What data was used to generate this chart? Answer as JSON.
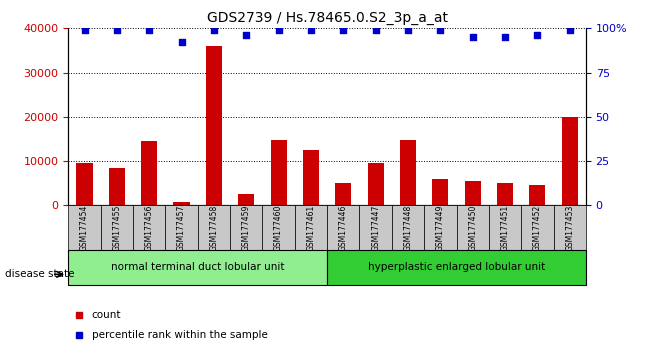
{
  "title": "GDS2739 / Hs.78465.0.S2_3p_a_at",
  "samples": [
    "GSM177454",
    "GSM177455",
    "GSM177456",
    "GSM177457",
    "GSM177458",
    "GSM177459",
    "GSM177460",
    "GSM177461",
    "GSM177446",
    "GSM177447",
    "GSM177448",
    "GSM177449",
    "GSM177450",
    "GSM177451",
    "GSM177452",
    "GSM177453"
  ],
  "counts": [
    9500,
    8500,
    14500,
    800,
    36000,
    2500,
    14800,
    12500,
    5000,
    9500,
    14800,
    6000,
    5500,
    5000,
    4500,
    20000
  ],
  "percentile_ranks": [
    99,
    99,
    99,
    92,
    99,
    96,
    99,
    99,
    99,
    99,
    99,
    99,
    95,
    95,
    96,
    99
  ],
  "bar_color": "#cc0000",
  "scatter_color": "#0000cc",
  "ylim_left": [
    0,
    40000
  ],
  "ylim_right": [
    0,
    100
  ],
  "yticks_left": [
    0,
    10000,
    20000,
    30000,
    40000
  ],
  "yticks_right": [
    0,
    25,
    50,
    75,
    100
  ],
  "ytick_labels_right": [
    "0",
    "25",
    "50",
    "75",
    "100%"
  ],
  "group1_label": "normal terminal duct lobular unit",
  "group2_label": "hyperplastic enlarged lobular unit",
  "group1_count": 8,
  "group2_count": 8,
  "disease_state_label": "disease state",
  "legend_count_label": "count",
  "legend_pct_label": "percentile rank within the sample",
  "group1_color": "#90ee90",
  "group2_color": "#32cd32",
  "tick_bg_color": "#c8c8c8",
  "bar_width": 0.5
}
